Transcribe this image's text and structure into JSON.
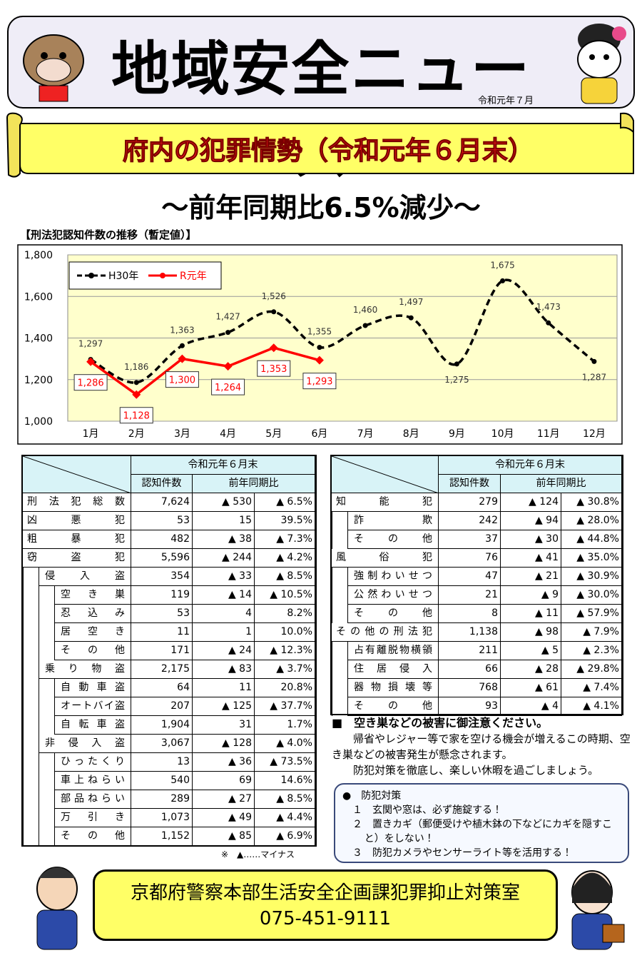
{
  "header": {
    "title": "地域安全ニュース",
    "date": "令和元年７月"
  },
  "banner": "府内の犯罪情勢（令和元年６月末）",
  "subtitle": "～前年同期比6.5%減少～",
  "chart_data": {
    "type": "line",
    "title": "【刑法犯認知件数の推移（暫定値）】",
    "categories": [
      "1月",
      "2月",
      "3月",
      "4月",
      "5月",
      "6月",
      "7月",
      "8月",
      "9月",
      "10月",
      "11月",
      "12月"
    ],
    "series": [
      {
        "name": "H30年",
        "color": "#000000",
        "dashed": true,
        "values": [
          1297,
          1186,
          1363,
          1427,
          1526,
          1355,
          1460,
          1497,
          1275,
          1675,
          1473,
          1287
        ],
        "value_labels": [
          "1,297",
          "1,186",
          "1,363",
          "1,427",
          "1,526",
          "1,355",
          "1,460",
          "1,497",
          "1,275",
          "1,675",
          "1,473",
          "1,287"
        ]
      },
      {
        "name": "R元年",
        "color": "#ff0000",
        "dashed": false,
        "values": [
          1286,
          1128,
          1300,
          1264,
          1353,
          1293,
          null,
          null,
          null,
          null,
          null,
          null
        ],
        "value_labels": [
          "1,286",
          "1,128",
          "1,300",
          "1,264",
          "1,353",
          "1,293",
          null,
          null,
          null,
          null,
          null,
          null
        ]
      }
    ],
    "ylim": [
      1000,
      1800
    ],
    "yticks": [
      {
        "value": 1000,
        "label": "1,000"
      },
      {
        "value": 1200,
        "label": "1,200"
      },
      {
        "value": 1400,
        "label": "1,400"
      },
      {
        "value": 1600,
        "label": "1,600"
      },
      {
        "value": 1800,
        "label": "1,800"
      }
    ],
    "grid": true,
    "legend": "top-left"
  },
  "tables": [
    {
      "header": {
        "period": "令和元年６月末",
        "count": "認知件数",
        "compare": "前年同期比"
      },
      "rows": [
        {
          "label": "刑法犯総数",
          "cells": [
            "7,624",
            "▲ 530",
            "▲ 6.5%"
          ]
        },
        {
          "label": "凶悪犯",
          "cells": [
            "53",
            "15",
            "39.5%"
          ]
        },
        {
          "label": "粗暴犯",
          "cells": [
            "482",
            "▲ 38",
            "▲ 7.3%"
          ]
        },
        {
          "label": "窃盗犯",
          "cells": [
            "5,596",
            "▲ 244",
            "▲ 4.2%"
          ],
          "children": [
            {
              "label": "侵入盗",
              "cells": [
                "354",
                "▲ 33",
                "▲ 8.5%"
              ],
              "children": [
                {
                  "label": "空き巣",
                  "cells": [
                    "119",
                    "▲ 14",
                    "▲ 10.5%"
                  ]
                },
                {
                  "label": "忍込み",
                  "cells": [
                    "53",
                    "4",
                    "8.2%"
                  ]
                },
                {
                  "label": "居空き",
                  "cells": [
                    "11",
                    "1",
                    "10.0%"
                  ]
                },
                {
                  "label": "その他",
                  "cells": [
                    "171",
                    "▲ 24",
                    "▲ 12.3%"
                  ]
                }
              ]
            },
            {
              "label": "乗り物盗",
              "cells": [
                "2,175",
                "▲ 83",
                "▲ 3.7%"
              ],
              "children": [
                {
                  "label": "自動車盗",
                  "cells": [
                    "64",
                    "11",
                    "20.8%"
                  ]
                },
                {
                  "label": "オートバイ盗",
                  "cells": [
                    "207",
                    "▲ 125",
                    "▲ 37.7%"
                  ]
                },
                {
                  "label": "自転車盗",
                  "cells": [
                    "1,904",
                    "31",
                    "1.7%"
                  ]
                }
              ]
            },
            {
              "label": "非侵入盗",
              "cells": [
                "3,067",
                "▲ 128",
                "▲ 4.0%"
              ],
              "children": [
                {
                  "label": "ひったくり",
                  "cells": [
                    "13",
                    "▲ 36",
                    "▲ 73.5%"
                  ]
                },
                {
                  "label": "車上ねらい",
                  "cells": [
                    "540",
                    "69",
                    "14.6%"
                  ]
                },
                {
                  "label": "部品ねらい",
                  "cells": [
                    "289",
                    "▲ 27",
                    "▲ 8.5%"
                  ]
                },
                {
                  "label": "万引き",
                  "cells": [
                    "1,073",
                    "▲ 49",
                    "▲ 4.4%"
                  ]
                },
                {
                  "label": "その他",
                  "cells": [
                    "1,152",
                    "▲ 85",
                    "▲ 6.9%"
                  ]
                }
              ]
            }
          ]
        }
      ]
    },
    {
      "header": {
        "period": "令和元年６月末",
        "count": "認知件数",
        "compare": "前年同期比"
      },
      "rows": [
        {
          "label": "知能犯",
          "cells": [
            "279",
            "▲ 124",
            "▲ 30.8%"
          ],
          "children": [
            {
              "label": "詐欺",
              "cells": [
                "242",
                "▲ 94",
                "▲ 28.0%"
              ]
            },
            {
              "label": "その他",
              "cells": [
                "37",
                "▲ 30",
                "▲ 44.8%"
              ]
            }
          ]
        },
        {
          "label": "風俗犯",
          "cells": [
            "76",
            "▲ 41",
            "▲ 35.0%"
          ],
          "children": [
            {
              "label": "強制わいせつ",
              "cells": [
                "47",
                "▲ 21",
                "▲ 30.9%"
              ]
            },
            {
              "label": "公然わいせつ",
              "cells": [
                "21",
                "▲ 9",
                "▲ 30.0%"
              ]
            },
            {
              "label": "その他",
              "cells": [
                "8",
                "▲ 11",
                "▲ 57.9%"
              ]
            }
          ]
        },
        {
          "label": "その他の刑法犯",
          "cells": [
            "1,138",
            "▲ 98",
            "▲ 7.9%"
          ],
          "children": [
            {
              "label": "占有離脱物横領",
              "cells": [
                "211",
                "▲ 5",
                "▲ 2.3%"
              ]
            },
            {
              "label": "住居侵入",
              "cells": [
                "66",
                "▲ 28",
                "▲ 29.8%"
              ]
            },
            {
              "label": "器物損壊等",
              "cells": [
                "768",
                "▲ 61",
                "▲ 7.4%"
              ]
            },
            {
              "label": "その他",
              "cells": [
                "93",
                "▲ 4",
                "▲ 4.1%"
              ]
            }
          ]
        }
      ]
    }
  ],
  "table_note": "※　▲……マイナス",
  "notice": {
    "heading": "■　空き巣などの被害に御注意ください。",
    "paragraphs": [
      "帰省やレジャー等で家を空ける機会が増えるこの時期、空き巣などの被害発生が懸念されます。",
      "防犯対策を徹底し、楽しい休暇を過ごしましょう。"
    ]
  },
  "tips": {
    "heading": "●　防犯対策",
    "items": [
      "１　玄関や窓は、必ず施錠する！",
      "２　置きカギ（郵便受けや植木鉢の下などにカギを隠すこと）をしない！",
      "３　防犯カメラやセンサーライト等を活用する！"
    ]
  },
  "footer": {
    "office": "京都府警察本部生活安全企画課犯罪抑止対策室",
    "phone": "075-451-9111"
  }
}
